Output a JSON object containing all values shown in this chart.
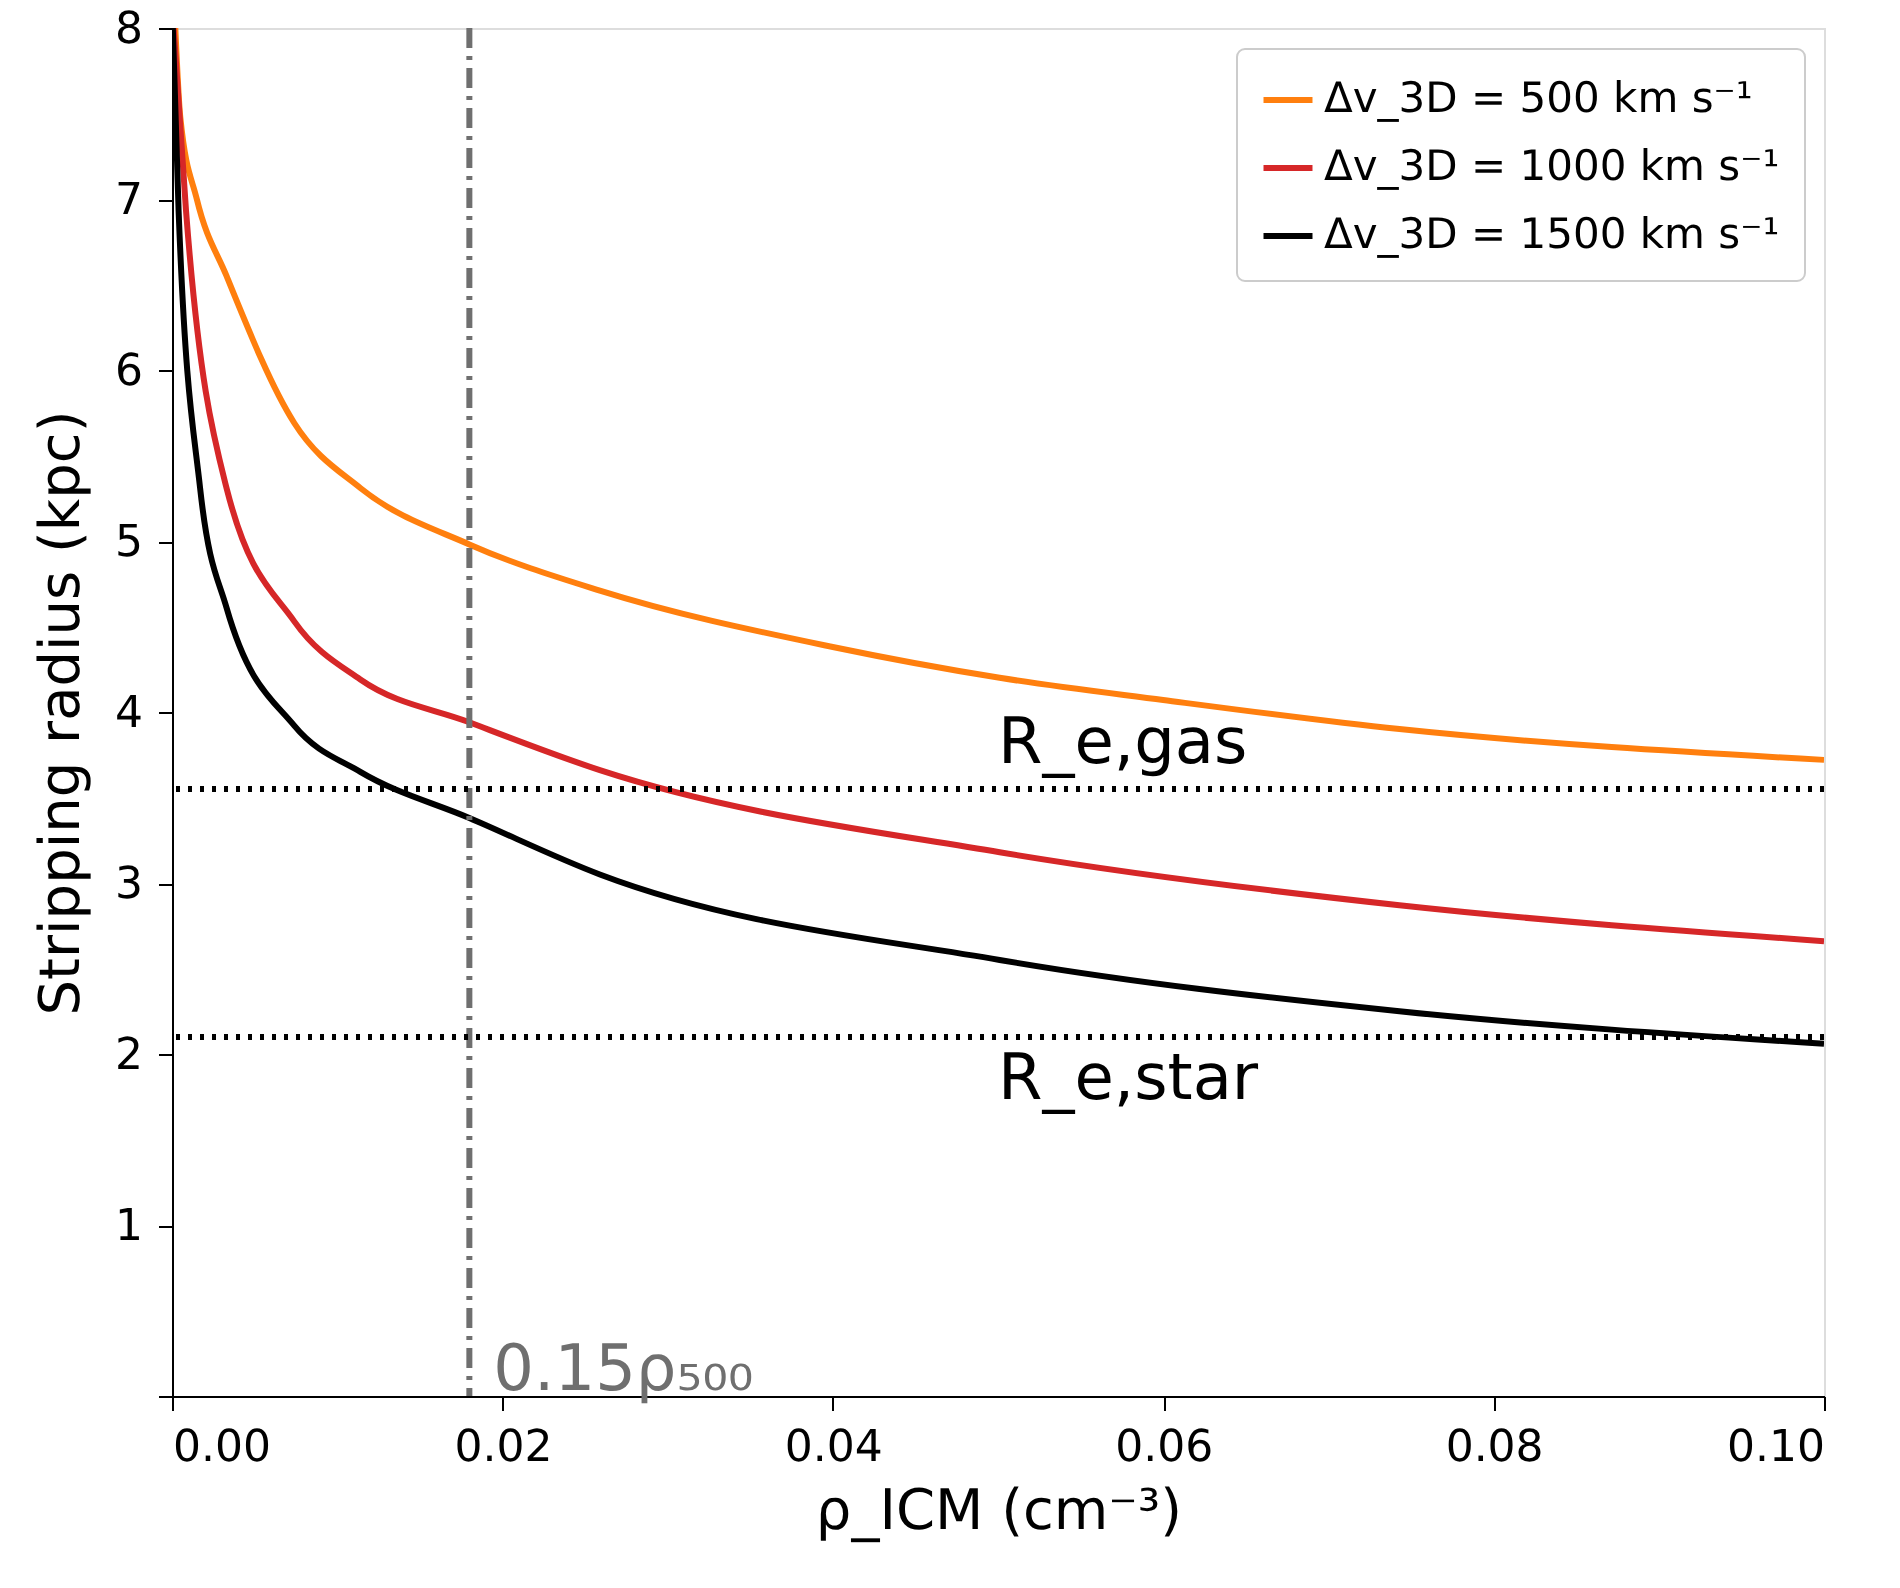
{
  "chart_data": {
    "type": "line",
    "xlabel": "ρ_ICM (cm⁻³)",
    "ylabel": "Stripping radius (kpc)",
    "xlim": [
      0,
      0.1
    ],
    "xticks": [
      {
        "value": 0,
        "label": "0.00"
      },
      0.02,
      0.04,
      0.06,
      0.08,
      {
        "value": 0.1,
        "label": "0.10"
      }
    ],
    "ylim": [
      0,
      8
    ],
    "yticks": [
      {
        "value": 0,
        "label": null
      },
      1,
      2,
      3,
      4,
      5,
      6,
      7,
      8
    ],
    "grid": false,
    "legend": "top right",
    "line_style": "solid",
    "marker": "none",
    "series": [
      {
        "name": "Δv_3D = 500 km s⁻¹",
        "color": "#ff7f0e",
        "x": [
          0.0002,
          0.0005,
          0.0015,
          0.0033,
          0.0074,
          0.0114,
          0.018,
          0.0259,
          0.04,
          0.0501,
          0.06,
          0.0743,
          0.1
        ],
        "values": [
          8,
          7.48,
          7.0,
          6.55,
          5.69,
          5.31,
          4.98,
          4.71,
          4.38,
          4.2,
          4.07,
          3.9,
          3.72
        ]
      },
      {
        "name": "Δv_3D = 1000 km s⁻¹",
        "color": "#d62728",
        "x": [
          0.0001,
          0.00085,
          0.0033,
          0.0074,
          0.0114,
          0.018,
          0.0259,
          0.0501,
          0.0743,
          0.1
        ],
        "values": [
          8,
          6.93,
          5.31,
          4.53,
          4.19,
          3.94,
          3.66,
          3.18,
          2.87,
          2.66
        ]
      },
      {
        "name": "Δv_3D = 1500 km s⁻¹",
        "color": "#000000",
        "x": [
          5e-05,
          0.0004,
          0.0017,
          0.0033,
          0.0074,
          0.0114,
          0.018,
          0.0259,
          0.0501,
          0.0743,
          0.1
        ],
        "values": [
          8,
          6.93,
          5.31,
          4.61,
          3.92,
          3.65,
          3.38,
          3.05,
          2.55,
          2.25,
          2.06
        ]
      }
    ],
    "ref_lines": [
      {
        "axis": "x",
        "value": 0.018,
        "color": "#6f6f6f",
        "line_style": "dashdot",
        "label": "0.15ρ₅₀₀"
      },
      {
        "axis": "y",
        "value": 3.55,
        "color": "#000000",
        "line_style": "dotted",
        "label": "R_e,gas"
      },
      {
        "axis": "y",
        "value": 2.1,
        "color": "#000000",
        "line_style": "dotted",
        "label": "R_e,star"
      }
    ]
  }
}
